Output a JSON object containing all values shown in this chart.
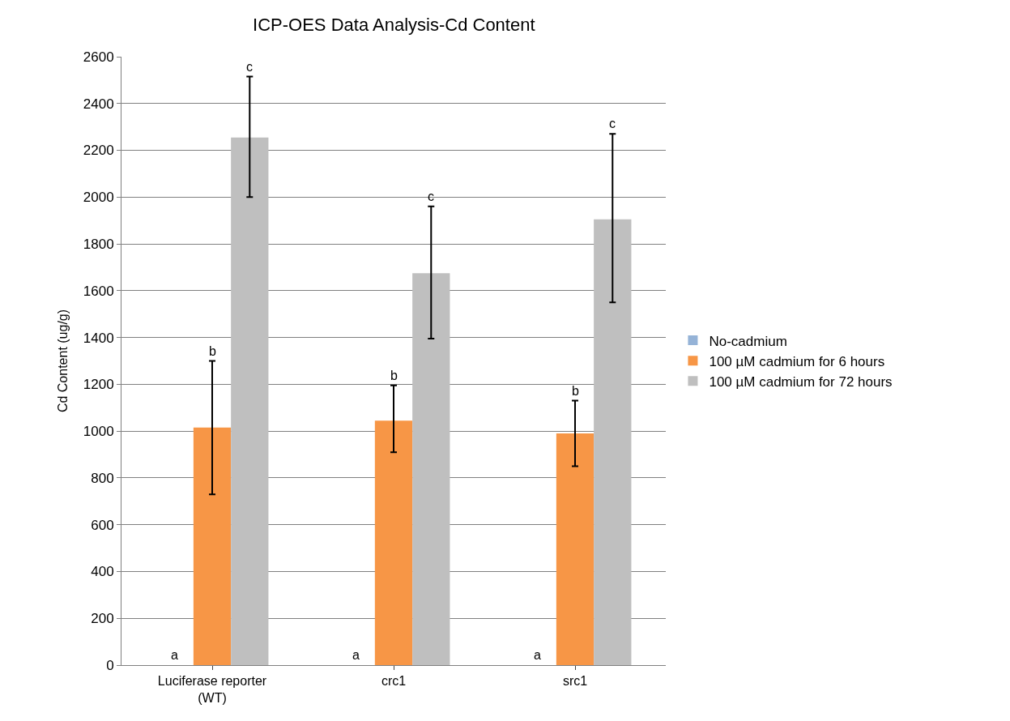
{
  "chart_data": {
    "type": "bar",
    "title": "ICP-OES Data Analysis-Cd Content",
    "ylabel": "Cd Content (ug/g)",
    "categories": [
      "Luciferase reporter\n(WT)",
      "crc1",
      "src1"
    ],
    "series": [
      {
        "name": "No-cadmium",
        "color": "#95b3d7",
        "values": [
          0,
          0,
          0
        ]
      },
      {
        "name": "100 µM cadmium for 6 hours",
        "color": "#f79646",
        "values": [
          1015,
          1045,
          990
        ],
        "errors": [
          [
            730,
            1300
          ],
          [
            910,
            1195
          ],
          [
            850,
            1130
          ]
        ]
      },
      {
        "name": "100 µM cadmium for 72 hours",
        "color": "#bfbfbf",
        "values": [
          2255,
          1675,
          1905
        ],
        "errors": [
          [
            2000,
            2515
          ],
          [
            1395,
            1960
          ],
          [
            1550,
            2270
          ]
        ]
      }
    ],
    "annotations": [
      "a",
      "a",
      "a",
      "b",
      "b",
      "b",
      "c",
      "c",
      "c"
    ],
    "ylim": [
      0,
      2600
    ],
    "yticks": [
      0,
      200,
      400,
      600,
      800,
      1000,
      1200,
      1400,
      1600,
      1800,
      2000,
      2200,
      2400,
      2600
    ],
    "grid": "y",
    "legend": "right"
  }
}
